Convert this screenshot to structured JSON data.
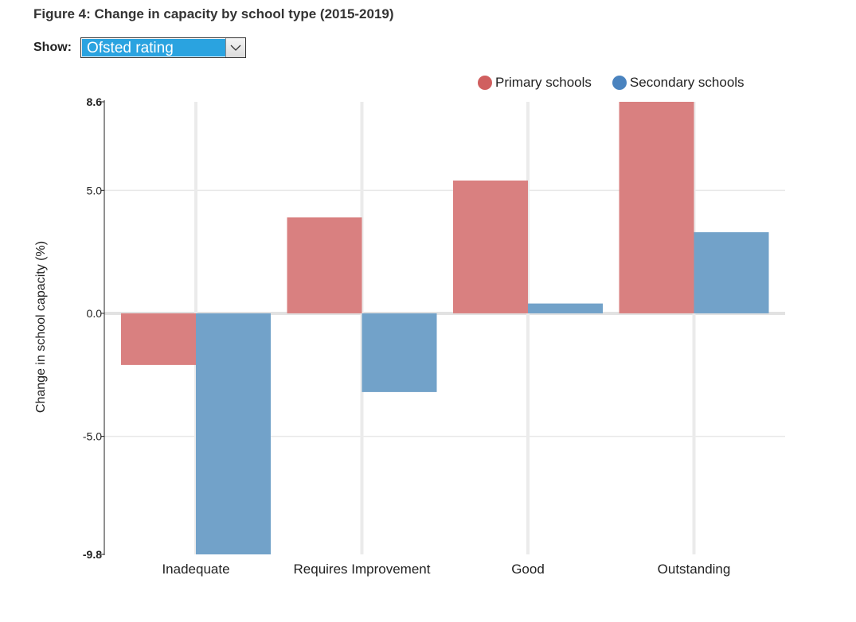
{
  "page": {
    "title": "Figure 4: Change in capacity by school type (2015-2019)",
    "show_label": "Show:",
    "dropdown": {
      "selected": "Ofsted rating",
      "icon": "chevron-down-icon"
    }
  },
  "colors": {
    "primary": "#d98080",
    "secondary": "#72a2c9",
    "primary_dot": "#d05f5f",
    "secondary_dot": "#4a83bf"
  },
  "chart_data": {
    "type": "bar",
    "title": "Figure 4: Change in capacity by school type (2015-2019)",
    "xlabel": "",
    "ylabel": "Change in school capacity (%)",
    "ylim": [
      -9.8,
      8.6
    ],
    "yticks": [
      8.6,
      5.0,
      0.0,
      -5.0,
      -9.8
    ],
    "ytick_labels": [
      "8.6",
      "5.0",
      "0.0",
      "-5.0",
      "-9.8"
    ],
    "categories": [
      "Inadequate",
      "Requires Improvement",
      "Good",
      "Outstanding"
    ],
    "series": [
      {
        "name": "Primary schools",
        "values": [
          -2.1,
          3.9,
          5.4,
          8.6
        ]
      },
      {
        "name": "Secondary schools",
        "values": [
          -9.8,
          -3.2,
          0.4,
          3.3
        ]
      }
    ],
    "grid": true,
    "legend_position": "top-right"
  }
}
